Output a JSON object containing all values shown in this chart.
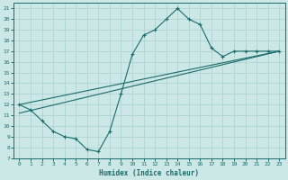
{
  "xlabel": "Humidex (Indice chaleur)",
  "bg_color": "#cce8e6",
  "line_color": "#1a6b6b",
  "grid_color": "#aacfcf",
  "xlim": [
    -0.5,
    23.5
  ],
  "ylim": [
    7,
    21.5
  ],
  "xticks": [
    0,
    1,
    2,
    3,
    4,
    5,
    6,
    7,
    8,
    9,
    10,
    11,
    12,
    13,
    14,
    15,
    16,
    17,
    18,
    19,
    20,
    21,
    22,
    23
  ],
  "yticks": [
    7,
    8,
    9,
    10,
    11,
    12,
    13,
    14,
    15,
    16,
    17,
    18,
    19,
    20,
    21
  ],
  "line1_x": [
    0,
    1,
    2,
    3,
    4,
    5,
    6,
    7,
    8,
    9,
    10,
    11,
    12,
    13,
    14,
    15,
    16,
    17,
    18,
    19,
    20,
    21,
    22,
    23
  ],
  "line1_y": [
    12,
    11.5,
    10.5,
    9.5,
    9.0,
    8.8,
    7.8,
    7.6,
    9.5,
    13.0,
    16.7,
    18.5,
    19.0,
    20.0,
    21.0,
    20.0,
    19.5,
    17.3,
    16.5,
    17.0,
    17.0,
    17.0,
    17.0,
    17.0
  ],
  "line2_x": [
    0,
    23
  ],
  "line2_y": [
    11.2,
    17.0
  ],
  "line3_x": [
    0,
    23
  ],
  "line3_y": [
    12.0,
    17.0
  ]
}
